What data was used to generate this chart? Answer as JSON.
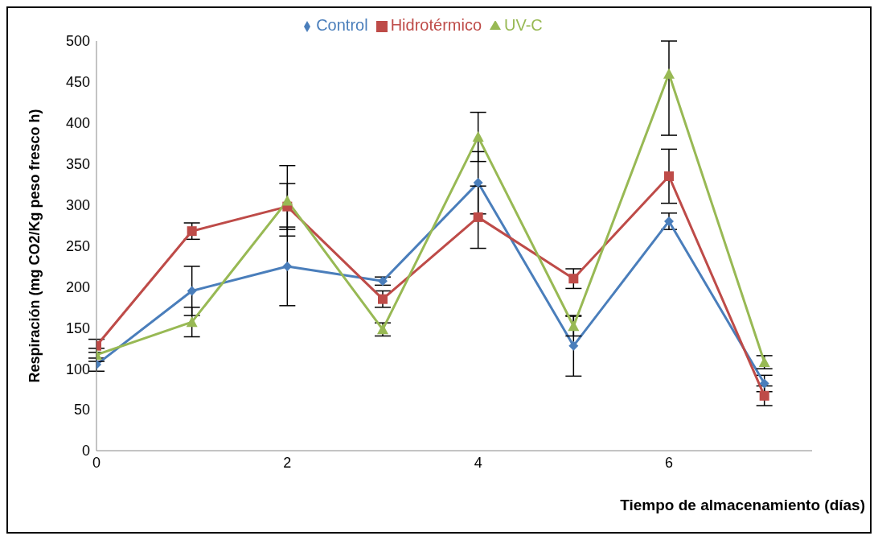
{
  "chart_data": {
    "type": "line",
    "xlabel": "Tiempo de almacenamiento (días)",
    "ylabel": "Respiración (mg CO2/Kg peso fresco h)",
    "x": [
      0,
      1,
      2,
      3,
      4,
      5,
      6,
      7
    ],
    "xlim": [
      0,
      7.5
    ],
    "xticks": [
      0,
      2,
      4,
      6
    ],
    "ylim": [
      0,
      500
    ],
    "yticks": [
      0,
      50,
      100,
      150,
      200,
      250,
      300,
      350,
      400,
      450,
      500
    ],
    "grid": false,
    "legend": "top",
    "series": [
      {
        "name": "Control",
        "color": "#4a7ebb",
        "marker": "diamond",
        "values": [
          105,
          195,
          225,
          207,
          327,
          128,
          280,
          82
        ],
        "errors": [
          8,
          30,
          48,
          5,
          38,
          37,
          10,
          10
        ]
      },
      {
        "name": "Hidrotérmico",
        "color": "#be4b48",
        "marker": "square",
        "values": [
          128,
          268,
          298,
          185,
          285,
          210,
          335,
          67
        ],
        "errors": [
          8,
          10,
          28,
          10,
          38,
          12,
          33,
          12
        ]
      },
      {
        "name": "UV-C",
        "color": "#98b954",
        "marker": "triangle",
        "values": [
          117,
          157,
          305,
          148,
          383,
          152,
          460,
          108
        ],
        "errors": [
          8,
          18,
          43,
          8,
          30,
          12,
          [
            385,
            500
          ],
          8
        ]
      }
    ]
  }
}
